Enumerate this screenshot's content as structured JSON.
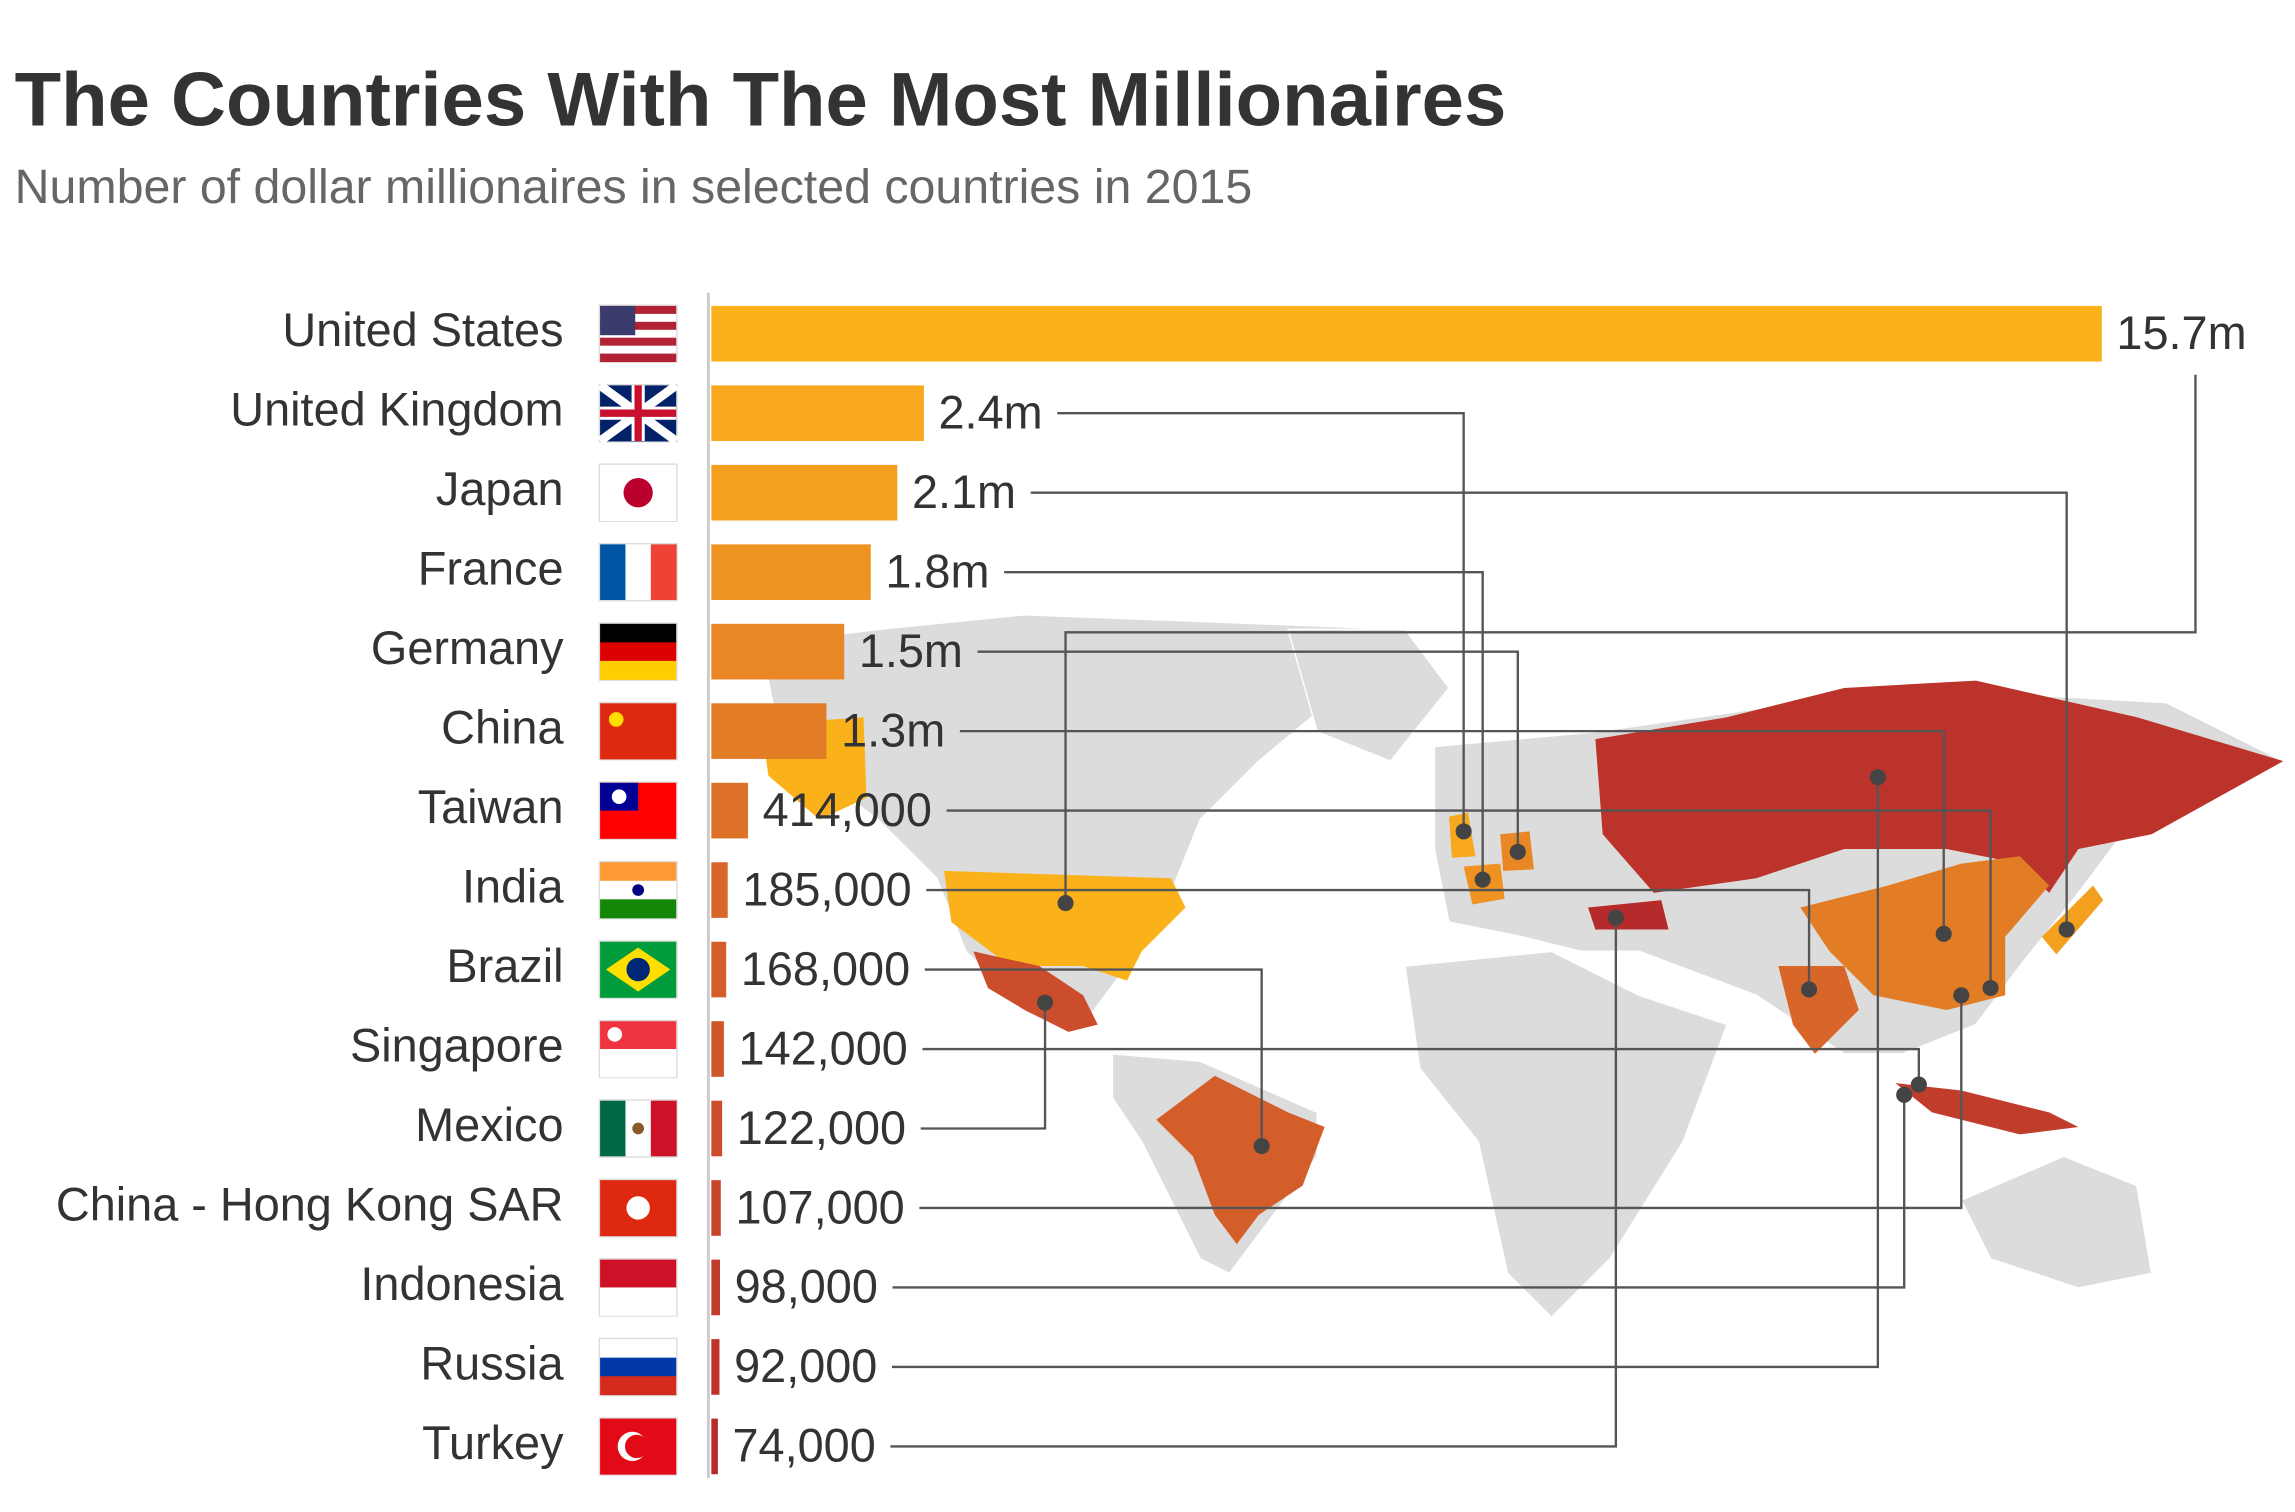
{
  "chart_data": {
    "type": "bar",
    "orientation": "horizontal",
    "title": "The Countries With The Most Millionaires",
    "subtitle": "Number of dollar millionaires in selected countries in 2015",
    "categories": [
      "United States",
      "United Kingdom",
      "Japan",
      "France",
      "Germany",
      "China",
      "Taiwan",
      "India",
      "Brazil",
      "Singapore",
      "Mexico",
      "China - Hong Kong SAR",
      "Indonesia",
      "Russia",
      "Turkey"
    ],
    "values": [
      15700000,
      2400000,
      2100000,
      1800000,
      1500000,
      1300000,
      414000,
      185000,
      168000,
      142000,
      122000,
      107000,
      98000,
      92000,
      74000
    ],
    "value_labels": [
      "15.7m",
      "2.4m",
      "2.1m",
      "1.8m",
      "1.5m",
      "1.3m",
      "414,000",
      "185,000",
      "168,000",
      "142,000",
      "122,000",
      "107,000",
      "98,000",
      "92,000",
      "74,000"
    ],
    "colors": [
      "#fbb21a",
      "#f7a81d",
      "#f4a01f",
      "#ee9322",
      "#e88724",
      "#e27d26",
      "#dc7127",
      "#d96629",
      "#d45e2a",
      "#cf552b",
      "#cb4d2b",
      "#c6452b",
      "#c13d2b",
      "#bb332a",
      "#b52a2a"
    ]
  }
}
